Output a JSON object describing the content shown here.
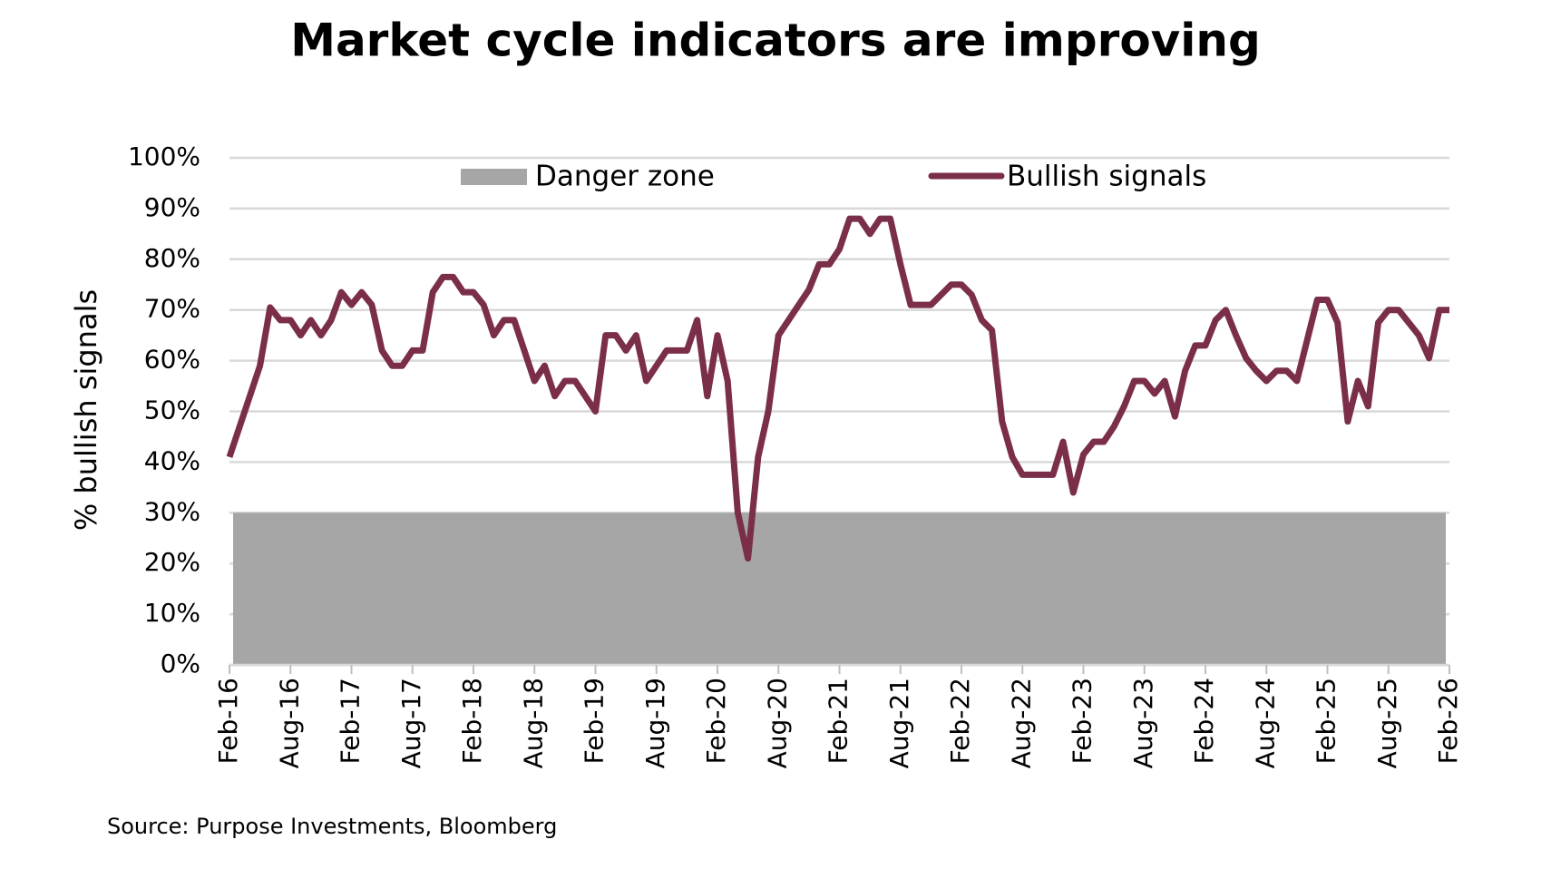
{
  "chart_data": {
    "type": "line",
    "title": "Market cycle indicators are improving",
    "y_label": "% bullish signals",
    "source": "Source: Purpose Investments, Bloomberg",
    "categories": [
      "Feb-16",
      null,
      null,
      null,
      null,
      null,
      "Aug-16",
      null,
      null,
      null,
      null,
      null,
      "Feb-17",
      null,
      null,
      null,
      null,
      null,
      "Aug-17",
      null,
      null,
      null,
      null,
      null,
      "Feb-18",
      null,
      null,
      null,
      null,
      null,
      "Aug-18",
      null,
      null,
      null,
      null,
      null,
      "Feb-19",
      null,
      null,
      null,
      null,
      null,
      "Aug-19",
      null,
      null,
      null,
      null,
      null,
      "Feb-20",
      null,
      null,
      null,
      null,
      null,
      "Aug-20",
      null,
      null,
      null,
      null,
      null,
      "Feb-21",
      null,
      null,
      null,
      null,
      null,
      "Aug-21",
      null,
      null,
      null,
      null,
      null,
      "Feb-22",
      null,
      null,
      null,
      null,
      null,
      "Aug-22",
      null,
      null,
      null,
      null,
      null,
      "Feb-23",
      null,
      null,
      null,
      null,
      null,
      "Aug-23",
      null,
      null,
      null,
      null,
      null,
      "Feb-24",
      null,
      null,
      null,
      null,
      null,
      "Aug-24",
      null,
      null,
      null,
      null,
      null,
      "Feb-25",
      null,
      null,
      null,
      null,
      null,
      "Aug-25",
      null,
      null,
      null,
      null,
      null,
      "Feb-26"
    ],
    "series": [
      {
        "name": "Bullish signals",
        "color": "#7a2e49",
        "values": [
          41,
          47,
          53,
          59,
          70.5,
          68,
          68,
          65,
          68,
          65,
          68,
          73.5,
          71,
          73.5,
          71,
          62,
          59,
          59,
          62,
          62,
          73.5,
          76.5,
          76.5,
          73.5,
          73.5,
          71,
          65,
          68,
          68,
          62,
          56,
          59,
          53,
          56,
          56,
          53,
          50,
          65,
          65,
          62,
          65,
          56,
          59,
          62,
          62,
          62,
          68,
          53,
          65,
          56,
          30,
          21,
          41,
          50,
          65,
          68,
          71,
          74,
          79,
          79,
          82,
          88,
          88,
          85,
          88,
          88,
          79,
          71,
          71,
          71,
          73,
          75,
          75,
          73,
          68,
          66,
          48,
          41,
          37.5,
          37.5,
          37.5,
          37.5,
          44,
          34,
          41.5,
          44,
          44,
          47,
          51,
          56,
          56,
          53.5,
          56,
          49,
          58,
          63,
          63,
          68,
          70,
          65,
          60.5,
          58,
          56,
          58,
          58,
          56,
          64,
          72,
          72,
          67.5,
          48,
          56,
          51,
          67.5,
          70,
          70,
          67.5,
          65,
          60.5,
          70,
          70
        ]
      }
    ],
    "bands": [
      {
        "name": "Danger zone",
        "color": "#a6a6a6",
        "values": [
          0,
          30
        ]
      }
    ],
    "ylim": [
      0,
      100
    ],
    "yticks": [
      {
        "value": 0,
        "label": "0%"
      },
      {
        "value": 10,
        "label": "10%"
      },
      {
        "value": 20,
        "label": "20%"
      },
      {
        "value": 30,
        "label": "30%"
      },
      {
        "value": 40,
        "label": "40%"
      },
      {
        "value": 50,
        "label": "50%"
      },
      {
        "value": 60,
        "label": "60%"
      },
      {
        "value": 70,
        "label": "70%"
      },
      {
        "value": 80,
        "label": "80%"
      },
      {
        "value": 90,
        "label": "90%"
      },
      {
        "value": 100,
        "label": "100%"
      }
    ],
    "grid": true
  }
}
